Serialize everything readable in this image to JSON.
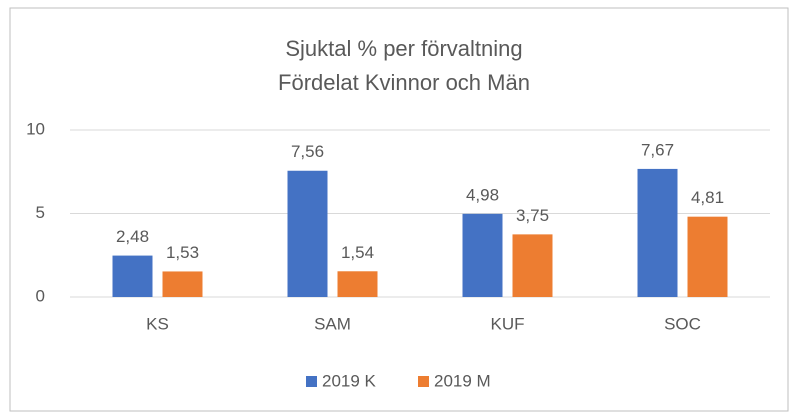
{
  "chart_data": {
    "type": "bar",
    "title": "Sjuktal % per förvaltning",
    "subtitle": "Fördelat Kvinnor och Män",
    "categories": [
      "KS",
      "SAM",
      "KUF",
      "SOC"
    ],
    "series": [
      {
        "name": "2019 K",
        "color": "#4472c4",
        "values": [
          2.48,
          7.56,
          4.98,
          7.67
        ],
        "value_labels": [
          "2,48",
          "7,56",
          "4,98",
          "7,67"
        ]
      },
      {
        "name": "2019 M",
        "color": "#ed7d31",
        "values": [
          1.53,
          1.54,
          3.75,
          4.81
        ],
        "value_labels": [
          "1,53",
          "1,54",
          "3,75",
          "4,81"
        ]
      }
    ],
    "ylim": [
      0,
      10
    ],
    "yticks": [
      0,
      5,
      10
    ],
    "grid": true,
    "legend": "bottom"
  }
}
